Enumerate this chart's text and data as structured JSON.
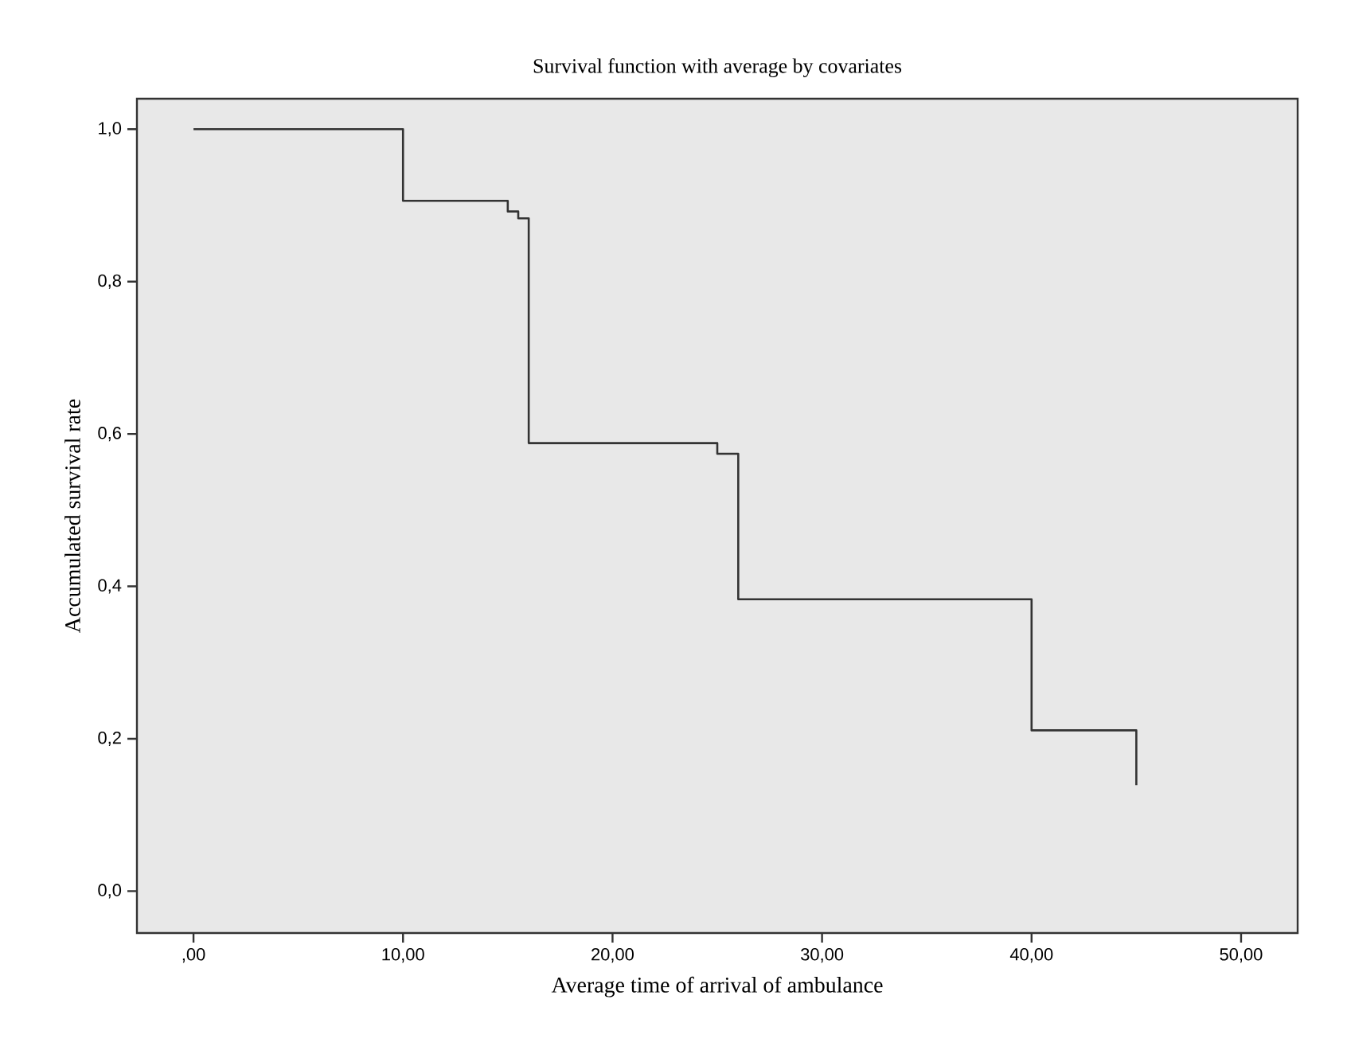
{
  "chart_data": {
    "type": "step",
    "title": "Survival function with average by covariates",
    "xlabel": "Average time of arrival of ambulance",
    "ylabel": "Accumulated survival rate",
    "x": [
      0,
      10,
      15,
      15.5,
      16,
      25,
      26,
      40,
      45
    ],
    "series": [
      {
        "color": "#333333",
        "values": [
          1,
          0.906,
          0.892,
          0.883,
          0.588,
          0.574,
          0.383,
          0.211,
          0.139
        ]
      }
    ],
    "xlim": [
      -2.7,
      52.7
    ],
    "ylim": [
      -0.055,
      1.04
    ],
    "xticks": [
      {
        "value": 0,
        "label": ",00"
      },
      {
        "value": 10,
        "label": "10,00"
      },
      {
        "value": 20,
        "label": "20,00"
      },
      {
        "value": 30,
        "label": "30,00"
      },
      {
        "value": 40,
        "label": "40,00"
      },
      {
        "value": 50,
        "label": "50,00"
      }
    ],
    "yticks": [
      {
        "value": 0,
        "label": "0,0"
      },
      {
        "value": 0.2,
        "label": "0,2"
      },
      {
        "value": 0.4,
        "label": "0,4"
      },
      {
        "value": 0.6,
        "label": "0,6"
      },
      {
        "value": 0.8,
        "label": "0,8"
      },
      {
        "value": 1,
        "label": "1,0"
      }
    ]
  }
}
